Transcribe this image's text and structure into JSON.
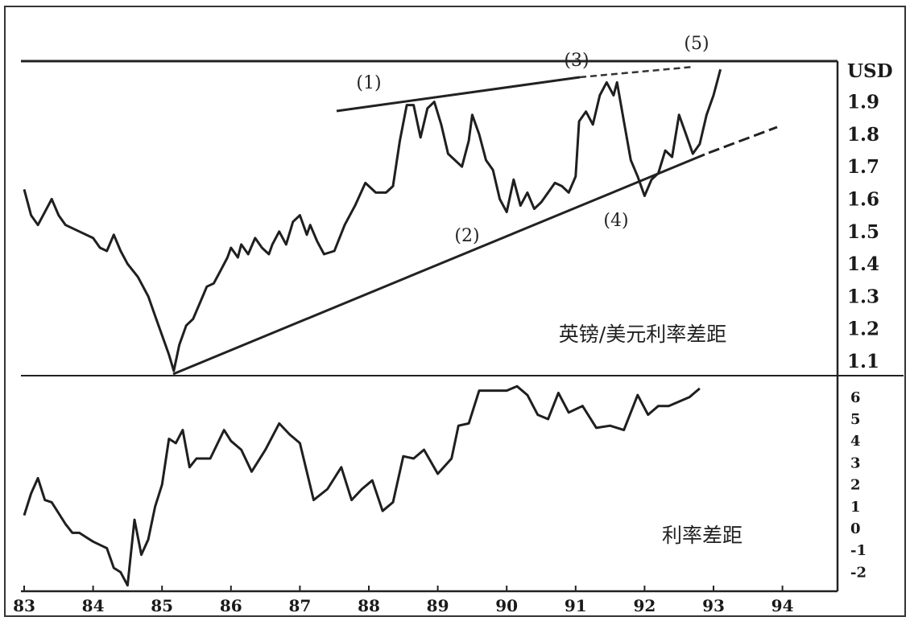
{
  "chart_data": [
    {
      "type": "line",
      "title": "",
      "label": "英镑/美元利率差距",
      "ylabel": "USD",
      "ylim": [
        1.05,
        2.0
      ],
      "x_tick_labels": [
        "83",
        "84",
        "85",
        "86",
        "87",
        "88",
        "89",
        "90",
        "91",
        "92",
        "93",
        "94"
      ],
      "y_tick_labels": [
        "USD",
        "1.9",
        "1.8",
        "1.7",
        "1.6",
        "1.5",
        "1.4",
        "1.3",
        "1.2",
        "1.1"
      ],
      "annotations": [
        "(1)",
        "(2)",
        "(3)",
        "(4)",
        "(5)"
      ],
      "series": [
        {
          "values": [
            [
              83.0,
              1.63
            ],
            [
              83.1,
              1.55
            ],
            [
              83.2,
              1.52
            ],
            [
              83.3,
              1.56
            ],
            [
              83.4,
              1.6
            ],
            [
              83.5,
              1.55
            ],
            [
              83.6,
              1.52
            ],
            [
              83.8,
              1.5
            ],
            [
              84.0,
              1.48
            ],
            [
              84.1,
              1.45
            ],
            [
              84.2,
              1.44
            ],
            [
              84.3,
              1.49
            ],
            [
              84.4,
              1.44
            ],
            [
              84.5,
              1.4
            ],
            [
              84.65,
              1.36
            ],
            [
              84.8,
              1.3
            ],
            [
              84.9,
              1.24
            ],
            [
              85.0,
              1.18
            ],
            [
              85.1,
              1.12
            ],
            [
              85.17,
              1.07
            ],
            [
              85.25,
              1.15
            ],
            [
              85.35,
              1.21
            ],
            [
              85.45,
              1.23
            ],
            [
              85.55,
              1.28
            ],
            [
              85.65,
              1.33
            ],
            [
              85.75,
              1.34
            ],
            [
              85.85,
              1.38
            ],
            [
              85.95,
              1.42
            ],
            [
              86.0,
              1.45
            ],
            [
              86.1,
              1.42
            ],
            [
              86.15,
              1.46
            ],
            [
              86.25,
              1.43
            ],
            [
              86.35,
              1.48
            ],
            [
              86.45,
              1.45
            ],
            [
              86.55,
              1.43
            ],
            [
              86.6,
              1.46
            ],
            [
              86.7,
              1.5
            ],
            [
              86.8,
              1.46
            ],
            [
              86.9,
              1.53
            ],
            [
              87.0,
              1.55
            ],
            [
              87.1,
              1.49
            ],
            [
              87.15,
              1.52
            ],
            [
              87.25,
              1.47
            ],
            [
              87.35,
              1.43
            ],
            [
              87.5,
              1.44
            ],
            [
              87.65,
              1.52
            ],
            [
              87.8,
              1.58
            ],
            [
              87.95,
              1.65
            ],
            [
              88.1,
              1.62
            ],
            [
              88.25,
              1.62
            ],
            [
              88.35,
              1.64
            ],
            [
              88.45,
              1.78
            ],
            [
              88.55,
              1.89
            ],
            [
              88.65,
              1.89
            ],
            [
              88.75,
              1.79
            ],
            [
              88.85,
              1.88
            ],
            [
              88.95,
              1.9
            ],
            [
              89.05,
              1.83
            ],
            [
              89.15,
              1.74
            ],
            [
              89.35,
              1.7
            ],
            [
              89.45,
              1.78
            ],
            [
              89.5,
              1.86
            ],
            [
              89.6,
              1.8
            ],
            [
              89.7,
              1.72
            ],
            [
              89.8,
              1.69
            ],
            [
              89.9,
              1.6
            ],
            [
              90.0,
              1.56
            ],
            [
              90.1,
              1.66
            ],
            [
              90.2,
              1.58
            ],
            [
              90.3,
              1.62
            ],
            [
              90.4,
              1.57
            ],
            [
              90.5,
              1.59
            ],
            [
              90.6,
              1.62
            ],
            [
              90.7,
              1.65
            ],
            [
              90.8,
              1.64
            ],
            [
              90.9,
              1.62
            ],
            [
              91.0,
              1.67
            ],
            [
              91.05,
              1.84
            ],
            [
              91.15,
              1.87
            ],
            [
              91.25,
              1.83
            ],
            [
              91.35,
              1.92
            ],
            [
              91.45,
              1.96
            ],
            [
              91.55,
              1.92
            ],
            [
              91.6,
              1.96
            ],
            [
              91.7,
              1.84
            ],
            [
              91.8,
              1.72
            ],
            [
              91.9,
              1.67
            ],
            [
              92.0,
              1.61
            ],
            [
              92.1,
              1.66
            ],
            [
              92.2,
              1.68
            ],
            [
              92.3,
              1.75
            ],
            [
              92.4,
              1.73
            ],
            [
              92.5,
              1.86
            ],
            [
              92.6,
              1.8
            ],
            [
              92.7,
              1.74
            ],
            [
              92.8,
              1.77
            ],
            [
              92.9,
              1.86
            ],
            [
              93.0,
              1.92
            ],
            [
              93.1,
              2.0
            ]
          ]
        }
      ]
    },
    {
      "type": "line",
      "title": "",
      "label": "利率差距",
      "ylim": [
        -2.6,
        7.2
      ],
      "x_tick_labels": [
        "83",
        "84",
        "85",
        "86",
        "87",
        "88",
        "89",
        "90",
        "91",
        "92",
        "93",
        "94"
      ],
      "y_tick_labels": [
        "6",
        "5",
        "4",
        "3",
        "2",
        "1",
        "0",
        "-1",
        "-2"
      ],
      "series": [
        {
          "values": [
            [
              83.0,
              0.6
            ],
            [
              83.1,
              1.6
            ],
            [
              83.2,
              2.3
            ],
            [
              83.3,
              1.3
            ],
            [
              83.4,
              1.2
            ],
            [
              83.5,
              0.7
            ],
            [
              83.6,
              0.2
            ],
            [
              83.7,
              -0.2
            ],
            [
              83.8,
              -0.2
            ],
            [
              83.9,
              -0.4
            ],
            [
              84.0,
              -0.6
            ],
            [
              84.2,
              -0.9
            ],
            [
              84.3,
              -1.8
            ],
            [
              84.4,
              -2.0
            ],
            [
              84.5,
              -2.6
            ],
            [
              84.6,
              0.4
            ],
            [
              84.7,
              -1.2
            ],
            [
              84.8,
              -0.5
            ],
            [
              84.9,
              1.0
            ],
            [
              85.0,
              2.0
            ],
            [
              85.1,
              4.1
            ],
            [
              85.2,
              3.9
            ],
            [
              85.3,
              4.5
            ],
            [
              85.4,
              2.8
            ],
            [
              85.5,
              3.2
            ],
            [
              85.7,
              3.2
            ],
            [
              85.9,
              4.5
            ],
            [
              86.0,
              4.0
            ],
            [
              86.15,
              3.6
            ],
            [
              86.3,
              2.6
            ],
            [
              86.5,
              3.6
            ],
            [
              86.7,
              4.8
            ],
            [
              86.85,
              4.3
            ],
            [
              87.0,
              3.9
            ],
            [
              87.2,
              1.3
            ],
            [
              87.4,
              1.8
            ],
            [
              87.6,
              2.8
            ],
            [
              87.75,
              1.3
            ],
            [
              87.9,
              1.8
            ],
            [
              88.05,
              2.2
            ],
            [
              88.2,
              0.8
            ],
            [
              88.35,
              1.2
            ],
            [
              88.5,
              3.3
            ],
            [
              88.65,
              3.2
            ],
            [
              88.8,
              3.6
            ],
            [
              89.0,
              2.5
            ],
            [
              89.2,
              3.2
            ],
            [
              89.3,
              4.7
            ],
            [
              89.45,
              4.8
            ],
            [
              89.6,
              6.3
            ],
            [
              89.8,
              6.3
            ],
            [
              90.0,
              6.3
            ],
            [
              90.15,
              6.5
            ],
            [
              90.3,
              6.1
            ],
            [
              90.45,
              5.2
            ],
            [
              90.6,
              5.0
            ],
            [
              90.75,
              6.2
            ],
            [
              90.9,
              5.3
            ],
            [
              91.1,
              5.6
            ],
            [
              91.3,
              4.6
            ],
            [
              91.5,
              4.7
            ],
            [
              91.7,
              4.5
            ],
            [
              91.9,
              6.1
            ],
            [
              92.05,
              5.2
            ],
            [
              92.2,
              5.6
            ],
            [
              92.35,
              5.6
            ],
            [
              92.5,
              5.8
            ],
            [
              92.65,
              6.0
            ],
            [
              92.8,
              6.4
            ]
          ]
        }
      ]
    }
  ]
}
